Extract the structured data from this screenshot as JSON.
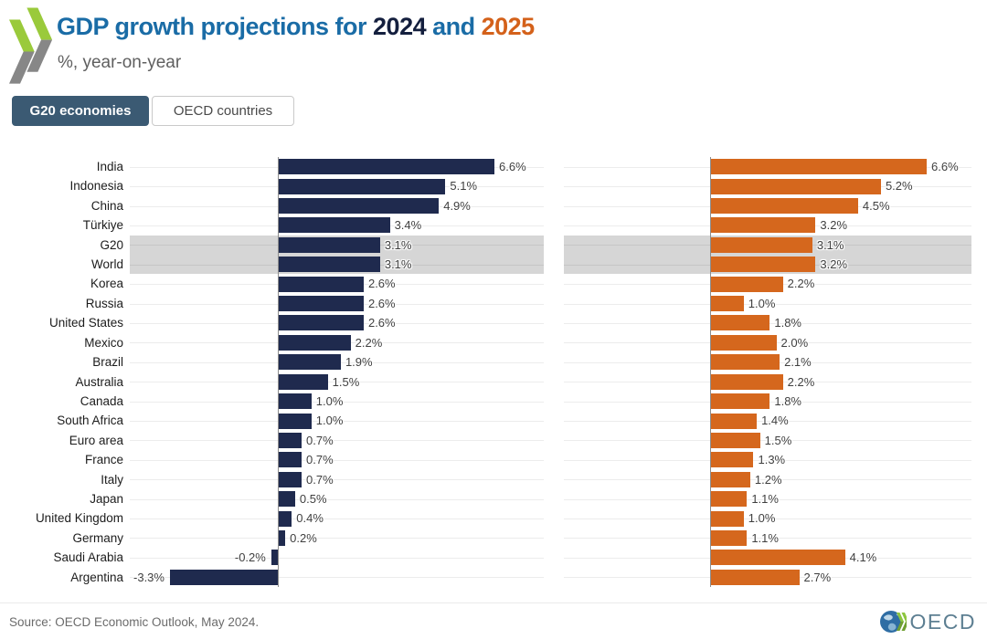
{
  "header": {
    "title_part1": "GDP growth projections for ",
    "title_year1": "2024",
    "title_and": " and ",
    "title_year2": "2025",
    "subtitle": "%, year-on-year"
  },
  "tabs": [
    {
      "label": "G20 economies",
      "selected": true
    },
    {
      "label": "OECD countries",
      "selected": false
    }
  ],
  "chart_data": {
    "type": "bar",
    "orientation": "horizontal",
    "categories": [
      "India",
      "Indonesia",
      "China",
      "Türkiye",
      "G20",
      "World",
      "Korea",
      "Russia",
      "United States",
      "Mexico",
      "Brazil",
      "Australia",
      "Canada",
      "South Africa",
      "Euro area",
      "France",
      "Italy",
      "Japan",
      "United Kingdom",
      "Germany",
      "Saudi Arabia",
      "Argentina"
    ],
    "highlighted_categories": [
      "G20",
      "World"
    ],
    "series": [
      {
        "name": "2024",
        "color": "#1f2a4e",
        "values": [
          6.6,
          5.1,
          4.9,
          3.4,
          3.1,
          3.1,
          2.6,
          2.6,
          2.6,
          2.2,
          1.9,
          1.5,
          1.0,
          1.0,
          0.7,
          0.7,
          0.7,
          0.5,
          0.4,
          0.2,
          -0.2,
          -3.3
        ]
      },
      {
        "name": "2025",
        "color": "#d5671d",
        "values": [
          6.6,
          5.2,
          4.5,
          3.2,
          3.1,
          3.2,
          2.2,
          1.0,
          1.8,
          2.0,
          2.1,
          2.2,
          1.8,
          1.4,
          1.5,
          1.3,
          1.2,
          1.1,
          1.0,
          1.1,
          4.1,
          2.7
        ]
      }
    ],
    "value_suffix": "%",
    "value_decimals": 1,
    "xlim": [
      -4.5,
      8.1
    ],
    "grid": true,
    "value_labels": true,
    "highlight_band_color": "#d6d6d6"
  },
  "colors": {
    "bar_2024": "#1f2a4e",
    "bar_2025": "#d5671d",
    "title_blue": "#1a6ca6",
    "title_navy": "#141f3e",
    "title_orange": "#d4611a",
    "tab_selected_bg": "#3b5a73",
    "brand_green": "#9aca3b",
    "brand_gray": "#878787"
  },
  "footer": {
    "source": "Source: OECD Economic Outlook, May 2024.",
    "logo_text": "OECD"
  }
}
